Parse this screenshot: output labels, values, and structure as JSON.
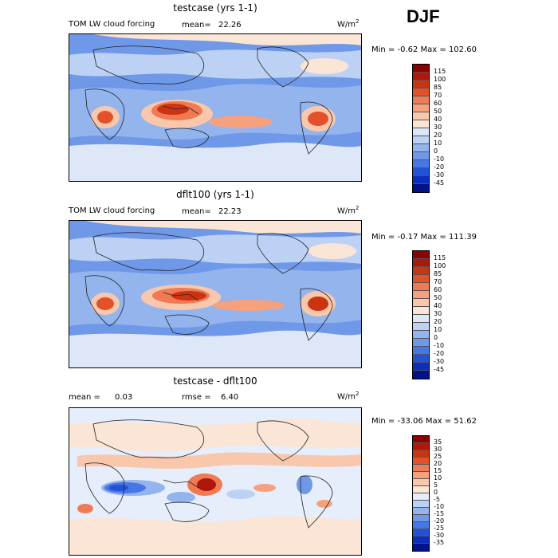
{
  "season": "DJF",
  "panels": [
    {
      "title": "testcase (yrs 1-1)",
      "left_label": "TOM LW cloud forcing",
      "mean_label": "mean=",
      "mean_value": "22.26",
      "units_base": "W/m",
      "units_exp": "2",
      "min_max": "Min =  -0.62 Max = 102.60",
      "levels": [
        "115",
        "100",
        "85",
        "70",
        "60",
        "50",
        "40",
        "30",
        "20",
        "10",
        "0",
        "-10",
        "-20",
        "-30",
        "-45"
      ],
      "colors": [
        "#8b0000",
        "#b0170b",
        "#cc3311",
        "#e2512a",
        "#ef7a53",
        "#f6a07e",
        "#f9c7ac",
        "#fbe5d6",
        "#dde7f7",
        "#bcd1f3",
        "#94b4ee",
        "#6f99e8",
        "#4677e4",
        "#2352d8",
        "#0a2ebd",
        "#03118a"
      ]
    },
    {
      "title": "dflt100 (yrs 1-1)",
      "left_label": "TOM LW cloud forcing",
      "mean_label": "mean=",
      "mean_value": "22.23",
      "units_base": "W/m",
      "units_exp": "2",
      "min_max": "Min =  -0.17 Max = 111.39",
      "levels": [
        "115",
        "100",
        "85",
        "70",
        "60",
        "50",
        "40",
        "30",
        "20",
        "10",
        "0",
        "-10",
        "-20",
        "-30",
        "-45"
      ],
      "colors": [
        "#8b0000",
        "#b0170b",
        "#cc3311",
        "#e2512a",
        "#ef7a53",
        "#f6a07e",
        "#f9c7ac",
        "#fbe5d6",
        "#dde7f7",
        "#bcd1f3",
        "#94b4ee",
        "#6f99e8",
        "#4677e4",
        "#2352d8",
        "#0a2ebd",
        "#03118a"
      ]
    },
    {
      "title": "testcase - dflt100",
      "left_label": "mean =",
      "mean_label": "0.03",
      "rmse_label": "rmse =",
      "rmse_value": "6.40",
      "units_base": "W/m",
      "units_exp": "2",
      "min_max": "Min = -33.06 Max =  51.62",
      "levels": [
        "35",
        "30",
        "25",
        "20",
        "15",
        "10",
        "5",
        "0",
        "-5",
        "-10",
        "-15",
        "-20",
        "-25",
        "-30",
        "-35"
      ],
      "colors": [
        "#8b0000",
        "#b0170b",
        "#cc3311",
        "#e2512a",
        "#ef7a53",
        "#f6a07e",
        "#f9c7ac",
        "#fbe5d6",
        "#e6eefb",
        "#bcd1f3",
        "#94b4ee",
        "#6f99e8",
        "#4677e4",
        "#2352d8",
        "#0a2ebd",
        "#03118a"
      ]
    }
  ]
}
